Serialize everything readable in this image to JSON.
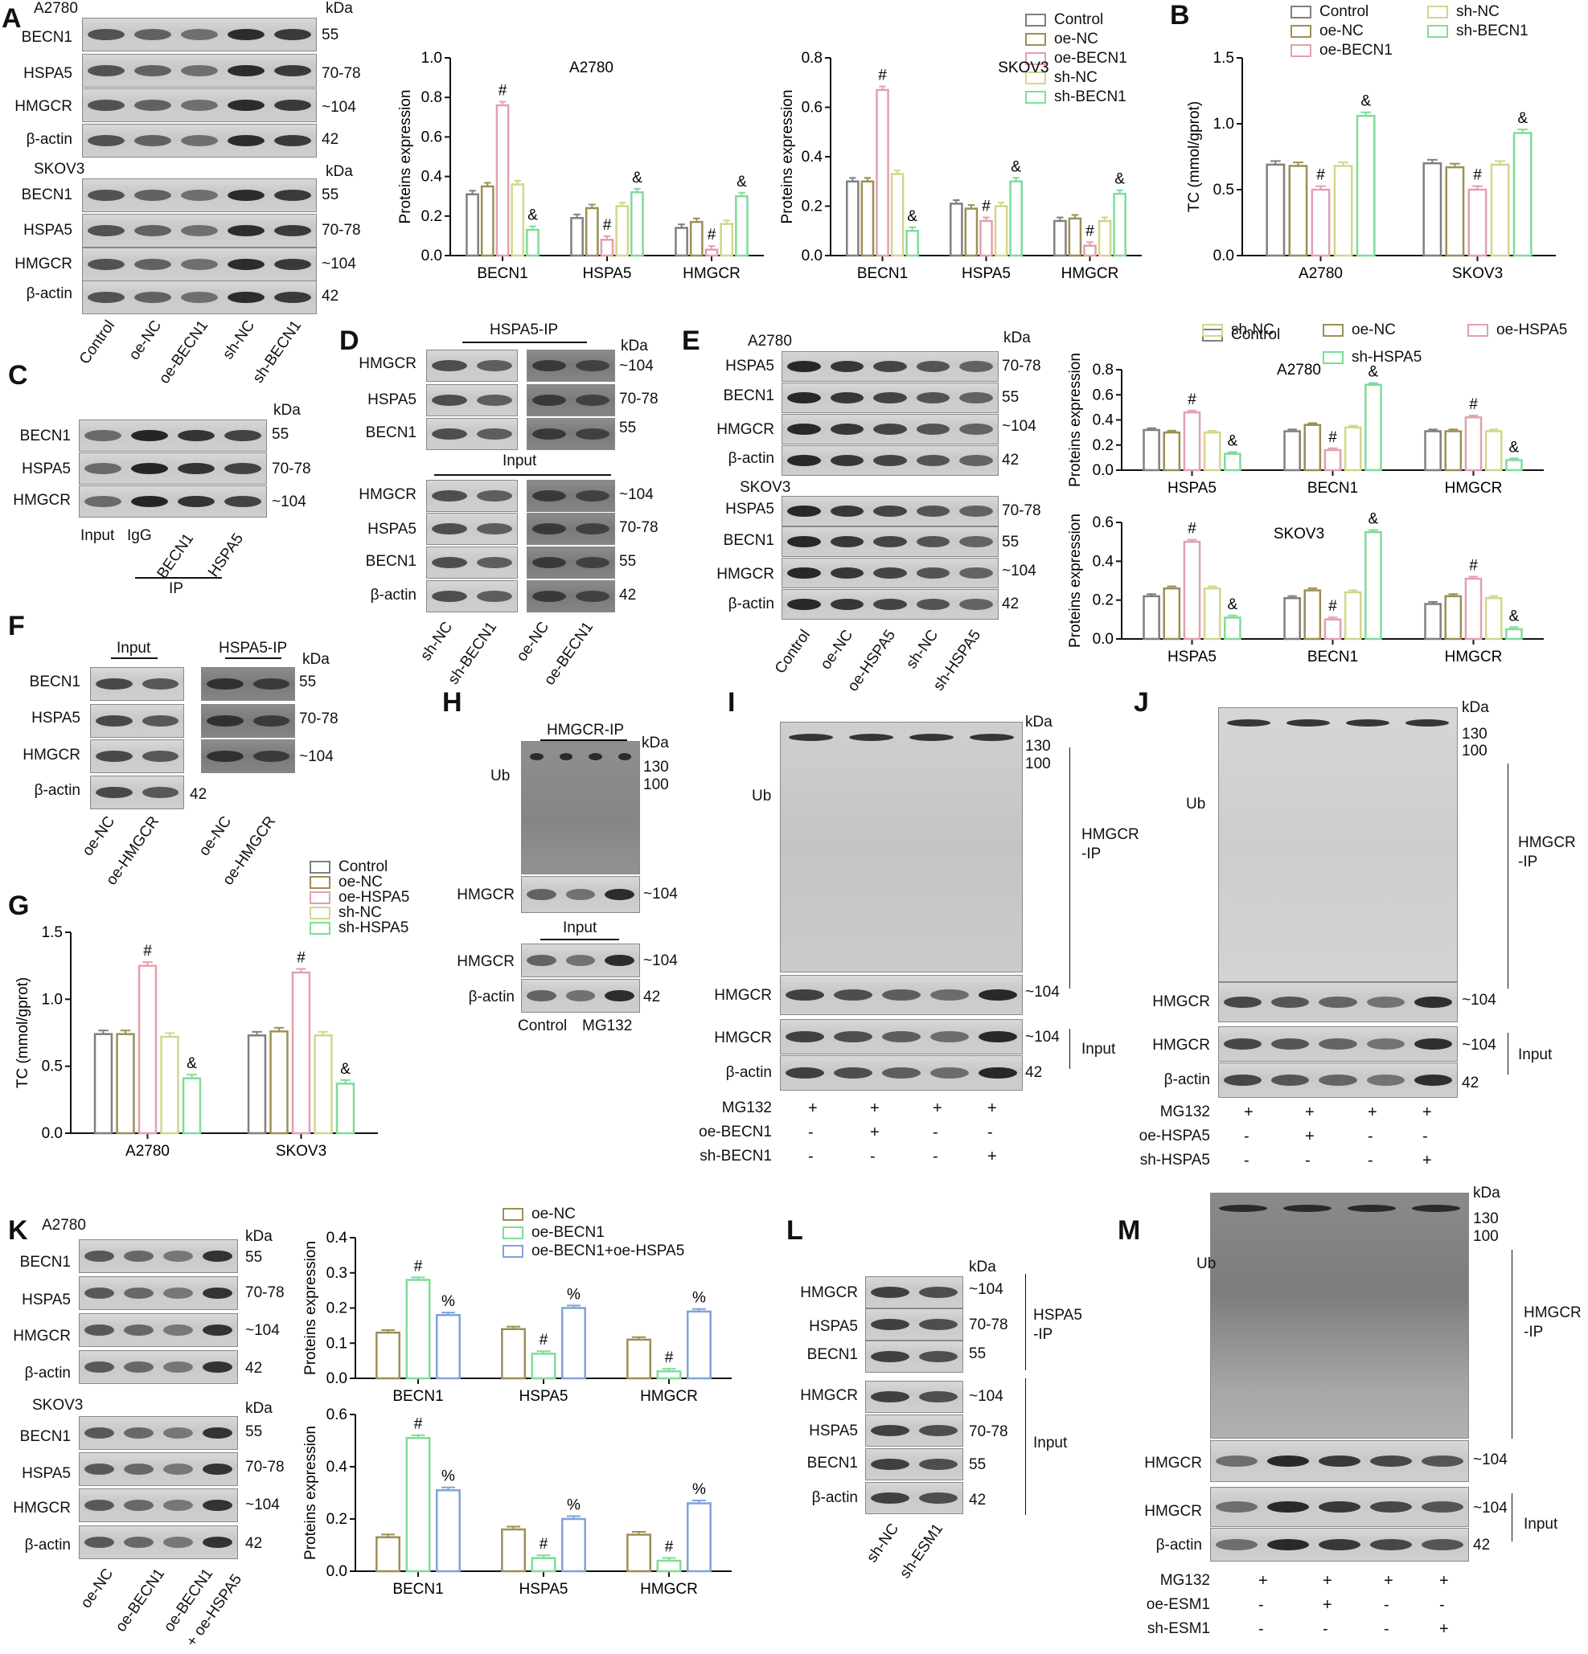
{
  "panels": {
    "A": "A",
    "B": "B",
    "C": "C",
    "D": "D",
    "E": "E",
    "F": "F",
    "G": "G",
    "H": "H",
    "I": "I",
    "J": "J",
    "K": "K",
    "L": "L",
    "M": "M"
  },
  "common": {
    "kda": "kDa",
    "becn1": "BECN1",
    "hspa5": "HSPA5",
    "hmgcr": "HMGCR",
    "actin": "β-actin",
    "ub": "Ub",
    "m55": "55",
    "m7078": "70-78",
    "m104": "~104",
    "m42": "42",
    "m130": "130",
    "m100": "100",
    "a2780": "A2780",
    "skov3": "SKOV3",
    "input": "Input",
    "igg": "IgG",
    "ip": "IP",
    "hspa5ip": "HSPA5-IP",
    "hmgcrip": "HMGCR-IP",
    "hmgcrip_a": "HMGCR",
    "hmgcrip_b": "-IP",
    "hspa5ip_a": "HSPA5",
    "hspa5ip_b": "-IP",
    "mg132": "MG132",
    "control": "Control",
    "plus": "+",
    "minus": "-"
  },
  "blot_lanes": {
    "A": [
      "Control",
      "oe-NC",
      "oe-BECN1",
      "sh-NC",
      "sh-BECN1"
    ],
    "C": [
      "Input",
      "IgG",
      "BECN1",
      "HSPA5"
    ],
    "D": [
      "sh-NC",
      "sh-BECN1",
      "oe-NC",
      "oe-BECN1"
    ],
    "E": [
      "Control",
      "oe-NC",
      "oe-HSPA5",
      "sh-NC",
      "sh-HSPA5"
    ],
    "F": [
      "oe-NC",
      "oe-HMGCR",
      "oe-NC",
      "oe-HMGCR"
    ],
    "H": [
      "Control",
      "MG132"
    ],
    "K": [
      "oe-NC",
      "oe-BECN1",
      "oe-BECN1",
      "+ oe-HSPA5"
    ],
    "L": [
      "sh-NC",
      "sh-ESM1"
    ]
  },
  "treatment_rows": {
    "I": {
      "rows": [
        "MG132",
        "oe-BECN1",
        "sh-BECN1"
      ],
      "signs": [
        [
          "+",
          "+",
          "+",
          "+"
        ],
        [
          "-",
          "+",
          "-",
          "-"
        ],
        [
          "-",
          "-",
          "-",
          "+"
        ]
      ]
    },
    "J": {
      "rows": [
        "MG132",
        "oe-HSPA5",
        "sh-HSPA5"
      ],
      "signs": [
        [
          "+",
          "+",
          "+",
          "+"
        ],
        [
          "-",
          "+",
          "-",
          "-"
        ],
        [
          "-",
          "-",
          "-",
          "+"
        ]
      ]
    },
    "M": {
      "rows": [
        "MG132",
        "oe-ESM1",
        "sh-ESM1"
      ],
      "signs": [
        [
          "+",
          "+",
          "+",
          "+"
        ],
        [
          "-",
          "+",
          "-",
          "-"
        ],
        [
          "-",
          "-",
          "-",
          "+"
        ]
      ]
    }
  },
  "legends": {
    "A": [
      "Control",
      "oe-NC",
      "oe-BECN1",
      "sh-NC",
      "sh-BECN1"
    ],
    "B": [
      "Control",
      "oe-NC",
      "oe-BECN1",
      "sh-NC",
      "sh-BECN1"
    ],
    "E": [
      "Control",
      "oe-NC",
      "oe-HSPA5",
      "sh-NC",
      "sh-HSPA5"
    ],
    "G": [
      "Control",
      "oe-NC",
      "oe-HSPA5",
      "sh-NC",
      "sh-HSPA5"
    ],
    "K": [
      "oe-NC",
      "oe-BECN1",
      "oe-BECN1+oe-HSPA5"
    ]
  },
  "colors": {
    "c5": [
      "#7f7f7f",
      "#9b8f55",
      "#e2a0ad",
      "#d3d68a",
      "#7fdc98"
    ],
    "c3": [
      "#9b8f55",
      "#7fdc98",
      "#7fa3d8"
    ]
  },
  "chart_data": [
    {
      "id": "A-A2780",
      "type": "bar",
      "title": "A2780",
      "ylabel": "Proteins  expression",
      "ylim": [
        0,
        1.0
      ],
      "yticks": [
        "0.0",
        "0.2",
        "0.4",
        "0.6",
        "0.8",
        "1.0"
      ],
      "ytick_values": [
        0,
        0.2,
        0.4,
        0.6,
        0.8,
        1.0
      ],
      "categories": [
        "BECN1",
        "HSPA5",
        "HMGCR"
      ],
      "series": [
        {
          "name": "Control",
          "values": [
            0.31,
            0.19,
            0.14
          ]
        },
        {
          "name": "oe-NC",
          "values": [
            0.35,
            0.24,
            0.17
          ]
        },
        {
          "name": "oe-BECN1",
          "values": [
            0.76,
            0.08,
            0.03
          ]
        },
        {
          "name": "sh-NC",
          "values": [
            0.36,
            0.25,
            0.16
          ]
        },
        {
          "name": "sh-BECN1",
          "values": [
            0.13,
            0.32,
            0.3
          ]
        }
      ],
      "annotations": [
        [
          null,
          null,
          "#",
          null,
          "&"
        ],
        [
          null,
          null,
          "#",
          null,
          "&"
        ],
        [
          null,
          null,
          "#",
          null,
          "&"
        ]
      ]
    },
    {
      "id": "A-SKOV3",
      "type": "bar",
      "title": "SKOV3",
      "ylabel": "Proteins  expression",
      "ylim": [
        0,
        0.8
      ],
      "yticks": [
        "0.0",
        "0.2",
        "0.4",
        "0.6",
        "0.8"
      ],
      "ytick_values": [
        0,
        0.2,
        0.4,
        0.6,
        0.8
      ],
      "categories": [
        "BECN1",
        "HSPA5",
        "HMGCR"
      ],
      "series": [
        {
          "name": "Control",
          "values": [
            0.3,
            0.21,
            0.14
          ]
        },
        {
          "name": "oe-NC",
          "values": [
            0.3,
            0.19,
            0.15
          ]
        },
        {
          "name": "oe-BECN1",
          "values": [
            0.67,
            0.14,
            0.04
          ]
        },
        {
          "name": "sh-NC",
          "values": [
            0.33,
            0.2,
            0.14
          ]
        },
        {
          "name": "sh-BECN1",
          "values": [
            0.1,
            0.3,
            0.25
          ]
        }
      ],
      "annotations": [
        [
          null,
          null,
          "#",
          null,
          "&"
        ],
        [
          null,
          null,
          "#",
          null,
          "&"
        ],
        [
          null,
          null,
          "#",
          null,
          "&"
        ]
      ]
    },
    {
      "id": "B",
      "type": "bar",
      "title": "",
      "ylabel": "TC (mmol/gprot)",
      "ylim": [
        0,
        1.5
      ],
      "yticks": [
        "0.0",
        "0.5",
        "1.0",
        "1.5"
      ],
      "ytick_values": [
        0,
        0.5,
        1.0,
        1.5
      ],
      "categories": [
        "A2780",
        "SKOV3"
      ],
      "series": [
        {
          "name": "Control",
          "values": [
            0.69,
            0.7
          ]
        },
        {
          "name": "oe-NC",
          "values": [
            0.68,
            0.67
          ]
        },
        {
          "name": "oe-BECN1",
          "values": [
            0.5,
            0.5
          ]
        },
        {
          "name": "sh-NC",
          "values": [
            0.68,
            0.69
          ]
        },
        {
          "name": "sh-BECN1",
          "values": [
            1.06,
            0.93
          ]
        }
      ],
      "annotations": [
        [
          null,
          null,
          "#",
          null,
          "&"
        ],
        [
          null,
          null,
          "#",
          null,
          "&"
        ]
      ]
    },
    {
      "id": "E-A2780",
      "type": "bar",
      "title": "A2780",
      "ylabel": "Proteins  expression",
      "ylim": [
        0,
        0.8
      ],
      "yticks": [
        "0.0",
        "0.2",
        "0.4",
        "0.6",
        "0.8"
      ],
      "ytick_values": [
        0,
        0.2,
        0.4,
        0.6,
        0.8
      ],
      "categories": [
        "HSPA5",
        "BECN1",
        "HMGCR"
      ],
      "series": [
        {
          "name": "Control",
          "values": [
            0.32,
            0.31,
            0.31
          ]
        },
        {
          "name": "oe-NC",
          "values": [
            0.3,
            0.36,
            0.31
          ]
        },
        {
          "name": "oe-HSPA5",
          "values": [
            0.46,
            0.16,
            0.42
          ]
        },
        {
          "name": "sh-NC",
          "values": [
            0.3,
            0.34,
            0.31
          ]
        },
        {
          "name": "sh-HSPA5",
          "values": [
            0.13,
            0.68,
            0.08
          ]
        }
      ],
      "annotations": [
        [
          null,
          null,
          "#",
          null,
          "&"
        ],
        [
          null,
          null,
          "#",
          null,
          "&"
        ],
        [
          null,
          null,
          "#",
          null,
          "&"
        ]
      ]
    },
    {
      "id": "E-SKOV3",
      "type": "bar",
      "title": "SKOV3",
      "ylabel": "Proteins expression",
      "ylim": [
        0,
        0.6
      ],
      "yticks": [
        "0.0",
        "0.2",
        "0.4",
        "0.6"
      ],
      "ytick_values": [
        0,
        0.2,
        0.4,
        0.6
      ],
      "categories": [
        "HSPA5",
        "BECN1",
        "HMGCR"
      ],
      "series": [
        {
          "name": "Control",
          "values": [
            0.22,
            0.21,
            0.18
          ]
        },
        {
          "name": "oe-NC",
          "values": [
            0.26,
            0.25,
            0.22
          ]
        },
        {
          "name": "oe-HSPA5",
          "values": [
            0.5,
            0.1,
            0.31
          ]
        },
        {
          "name": "sh-NC",
          "values": [
            0.26,
            0.24,
            0.21
          ]
        },
        {
          "name": "sh-HSPA5",
          "values": [
            0.11,
            0.55,
            0.05
          ]
        }
      ],
      "annotations": [
        [
          null,
          null,
          "#",
          null,
          "&"
        ],
        [
          null,
          null,
          "#",
          null,
          "&"
        ],
        [
          null,
          null,
          "#",
          null,
          "&"
        ]
      ]
    },
    {
      "id": "G",
      "type": "bar",
      "title": "",
      "ylabel": "TC (mmol/gprot)",
      "ylim": [
        0,
        1.5
      ],
      "yticks": [
        "0.0",
        "0.5",
        "1.0",
        "1.5"
      ],
      "ytick_values": [
        0,
        0.5,
        1.0,
        1.5
      ],
      "categories": [
        "A2780",
        "SKOV3"
      ],
      "series": [
        {
          "name": "Control",
          "values": [
            0.74,
            0.73
          ]
        },
        {
          "name": "oe-NC",
          "values": [
            0.74,
            0.76
          ]
        },
        {
          "name": "oe-HSPA5",
          "values": [
            1.25,
            1.2
          ]
        },
        {
          "name": "sh-NC",
          "values": [
            0.72,
            0.73
          ]
        },
        {
          "name": "sh-HSPA5",
          "values": [
            0.41,
            0.37
          ]
        }
      ],
      "annotations": [
        [
          null,
          null,
          "#",
          null,
          "&"
        ],
        [
          null,
          null,
          "#",
          null,
          "&"
        ]
      ]
    },
    {
      "id": "K-A2780",
      "type": "bar",
      "title": "",
      "ylabel": "Proteins expression",
      "ylim": [
        0,
        0.4
      ],
      "yticks": [
        "0.0",
        "0.1",
        "0.2",
        "0.3",
        "0.4"
      ],
      "ytick_values": [
        0,
        0.1,
        0.2,
        0.3,
        0.4
      ],
      "categories": [
        "BECN1",
        "HSPA5",
        "HMGCR"
      ],
      "series": [
        {
          "name": "oe-NC",
          "values": [
            0.13,
            0.14,
            0.11
          ]
        },
        {
          "name": "oe-BECN1",
          "values": [
            0.28,
            0.07,
            0.02
          ]
        },
        {
          "name": "oe-BECN1+oe-HSPA5",
          "values": [
            0.18,
            0.2,
            0.19
          ]
        }
      ],
      "annotations": [
        [
          null,
          "#",
          "%"
        ],
        [
          null,
          "#",
          "%"
        ],
        [
          null,
          "#",
          "%"
        ]
      ]
    },
    {
      "id": "K-SKOV3",
      "type": "bar",
      "title": "",
      "ylabel": "Proteins expression",
      "ylim": [
        0,
        0.6
      ],
      "yticks": [
        "0.0",
        "0.2",
        "0.4",
        "0.6"
      ],
      "ytick_values": [
        0,
        0.2,
        0.4,
        0.6
      ],
      "categories": [
        "BECN1",
        "HSPA5",
        "HMGCR"
      ],
      "series": [
        {
          "name": "oe-NC",
          "values": [
            0.13,
            0.16,
            0.14
          ]
        },
        {
          "name": "oe-BECN1",
          "values": [
            0.51,
            0.05,
            0.04
          ]
        },
        {
          "name": "oe-BECN1+oe-HSPA5",
          "values": [
            0.31,
            0.2,
            0.26
          ]
        }
      ],
      "annotations": [
        [
          null,
          "#",
          "%"
        ],
        [
          null,
          "#",
          "%"
        ],
        [
          null,
          "#",
          "%"
        ]
      ]
    }
  ]
}
